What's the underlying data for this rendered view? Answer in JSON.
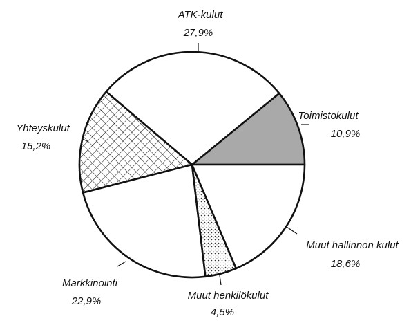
{
  "chart_data": {
    "type": "pie",
    "categories": [
      "Toimistokulut",
      "ATK-kulut",
      "Yhteyskulut",
      "Markkinointi",
      "Muut henkilökulut",
      "Muut hallinnon kulut"
    ],
    "values": [
      10.9,
      27.9,
      15.2,
      22.9,
      4.5,
      18.6
    ],
    "value_labels": [
      "10,9%",
      "27,9%",
      "15,2%",
      "22,9%",
      "4,5%",
      "18,6%"
    ],
    "colors": [
      "#a9a9a9",
      "#ffffff",
      "#ffffff",
      "#ffffff",
      "#ffffff",
      "#ffffff"
    ],
    "patterns": [
      null,
      null,
      "crosshatch",
      null,
      "dots",
      null
    ]
  }
}
